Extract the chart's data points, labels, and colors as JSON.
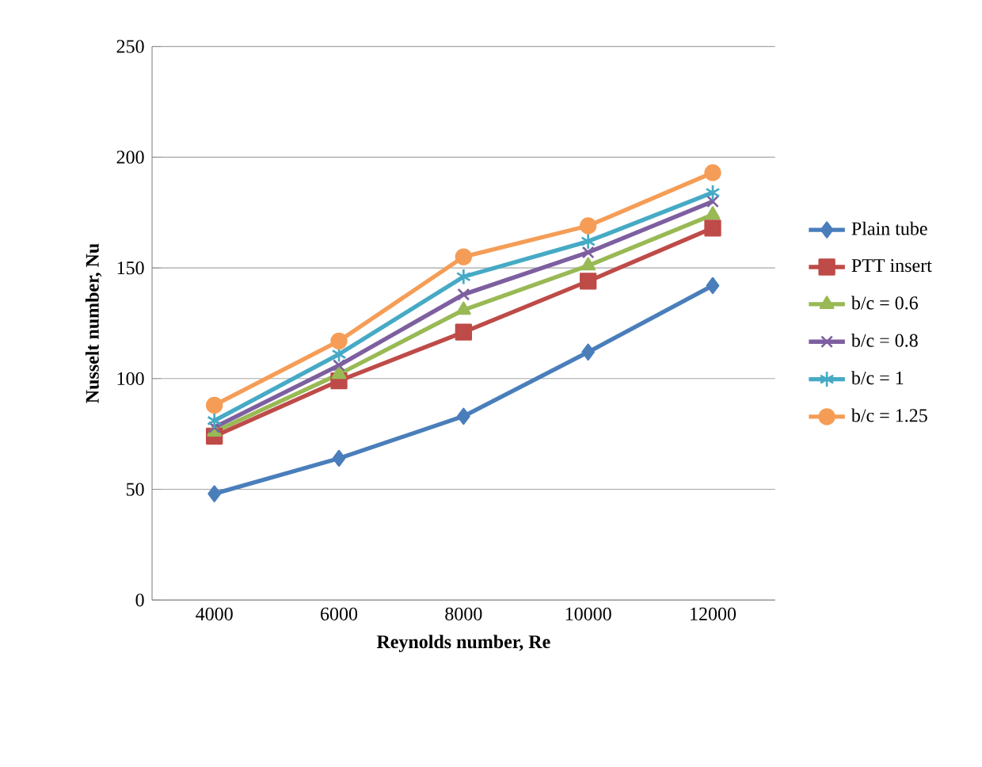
{
  "chart_data": {
    "type": "line",
    "xlabel": "Reynolds number, Re",
    "ylabel": "Nusselt number, Nu",
    "categories": [
      "4000",
      "6000",
      "8000",
      "10000",
      "12000"
    ],
    "ylim": [
      0,
      250
    ],
    "yticks": [
      0,
      50,
      100,
      150,
      200,
      250
    ],
    "grid": "y",
    "legend": "right",
    "series": [
      {
        "name": "Plain tube",
        "color": "#4a7ebb",
        "marker": "diamond",
        "values": [
          48,
          64,
          83,
          112,
          142
        ]
      },
      {
        "name": "PTT insert",
        "color": "#be4b48",
        "marker": "square",
        "values": [
          74,
          99,
          121,
          144,
          168
        ]
      },
      {
        "name": "b/c = 0.6",
        "color": "#98b954",
        "marker": "triangle",
        "values": [
          76,
          102,
          131,
          151,
          174
        ]
      },
      {
        "name": "b/c = 0.8",
        "color": "#7d5fa0",
        "marker": "cross",
        "values": [
          78,
          106,
          138,
          157,
          180
        ]
      },
      {
        "name": "b/c = 1",
        "color": "#46aac5",
        "marker": "cross",
        "values": [
          81,
          111,
          146,
          162,
          184
        ]
      },
      {
        "name": "b/c = 1.25",
        "color": "#f59d56",
        "marker": "circle",
        "values": [
          88,
          117,
          155,
          169,
          193
        ]
      }
    ]
  }
}
